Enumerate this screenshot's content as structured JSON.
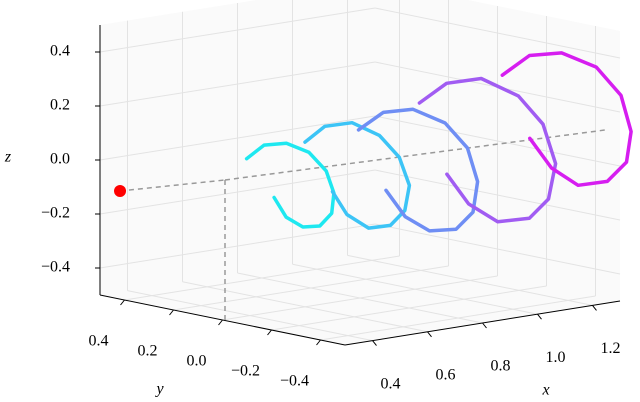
{
  "chart_data": {
    "type": "line3d",
    "xlabel": "x",
    "ylabel": "y",
    "zlabel": "z",
    "xlim": [
      0.3,
      1.3
    ],
    "ylim": [
      -0.5,
      0.5
    ],
    "zlim": [
      -0.5,
      0.5
    ],
    "xticks": [
      0.4,
      0.6,
      0.8,
      {
        "value": 1,
        "label": "1.0"
      },
      1.2
    ],
    "yticks": [
      0.4,
      0.2,
      {
        "value": 0,
        "label": "0.0"
      },
      {
        "value": -0.2,
        "label": "−0.2"
      },
      {
        "value": -0.4,
        "label": "−0.4"
      }
    ],
    "zticks": [
      0.4,
      0.2,
      {
        "value": 0,
        "label": "0.0"
      },
      {
        "value": -0.2,
        "label": "−0.2"
      },
      {
        "value": -0.4,
        "label": "−0.4"
      }
    ],
    "grid": true,
    "marker": {
      "x": 0.355,
      "y": 0.48,
      "z": -0.12,
      "color": "#ff0000"
    },
    "series": [
      {
        "color": "#1ee8f0",
        "x": [
          0.45,
          0.46,
          0.47,
          0.48,
          0.49,
          0.5,
          0.51,
          0.52,
          0.53,
          0.54,
          0.55
        ],
        "y": [
          0.07,
          0.01,
          -0.07,
          -0.15,
          -0.21,
          -0.23,
          -0.21,
          -0.15,
          -0.07,
          0.01,
          0.07
        ],
        "z": [
          0.06,
          0.12,
          0.14,
          0.12,
          0.06,
          -0.02,
          -0.1,
          -0.16,
          -0.18,
          -0.16,
          -0.1
        ]
      },
      {
        "color": "#3cc4f6",
        "x": [
          0.6,
          0.61,
          0.62,
          0.63,
          0.64,
          0.65,
          0.66,
          0.67,
          0.68,
          0.69,
          0.7
        ],
        "y": [
          0.0,
          -0.07,
          -0.17,
          -0.27,
          -0.34,
          -0.37,
          -0.34,
          -0.27,
          -0.17,
          -0.07,
          0.0
        ],
        "z": [
          0.11,
          0.18,
          0.21,
          0.18,
          0.11,
          0.01,
          -0.09,
          -0.16,
          -0.19,
          -0.16,
          -0.09
        ]
      },
      {
        "color": "#6f8ef4",
        "x": [
          0.75,
          0.76,
          0.77,
          0.78,
          0.79,
          0.8,
          0.81,
          0.82,
          0.83,
          0.84,
          0.85
        ],
        "y": [
          -0.05,
          -0.14,
          -0.25,
          -0.37,
          -0.45,
          -0.48,
          -0.45,
          -0.37,
          -0.25,
          -0.14,
          -0.05
        ],
        "z": [
          0.14,
          0.22,
          0.25,
          0.22,
          0.14,
          0.02,
          -0.1,
          -0.18,
          -0.21,
          -0.18,
          -0.1
        ]
      },
      {
        "color": "#a15cf2",
        "x": [
          0.9,
          0.91,
          0.92,
          0.93,
          0.94,
          0.95,
          0.96,
          0.97,
          0.98,
          0.99,
          1.0
        ],
        "y": [
          -0.13,
          -0.23,
          -0.36,
          -0.5,
          -0.59,
          -0.63,
          -0.59,
          -0.5,
          -0.36,
          -0.23,
          -0.13
        ],
        "z": [
          0.23,
          0.32,
          0.36,
          0.32,
          0.23,
          0.09,
          -0.05,
          -0.14,
          -0.18,
          -0.14,
          -0.05
        ]
      },
      {
        "color": "#d61ef0",
        "x": [
          1.05,
          1.06,
          1.07,
          1.08,
          1.09,
          1.1,
          1.11,
          1.12,
          1.13,
          1.14,
          1.15
        ],
        "y": [
          -0.3,
          -0.4,
          -0.52,
          -0.65,
          -0.74,
          -0.77,
          -0.74,
          -0.65,
          -0.52,
          -0.4,
          -0.3
        ],
        "z": [
          0.34,
          0.43,
          0.46,
          0.43,
          0.34,
          0.21,
          0.09,
          0.0,
          -0.04,
          0.0,
          0.09
        ]
      }
    ]
  }
}
